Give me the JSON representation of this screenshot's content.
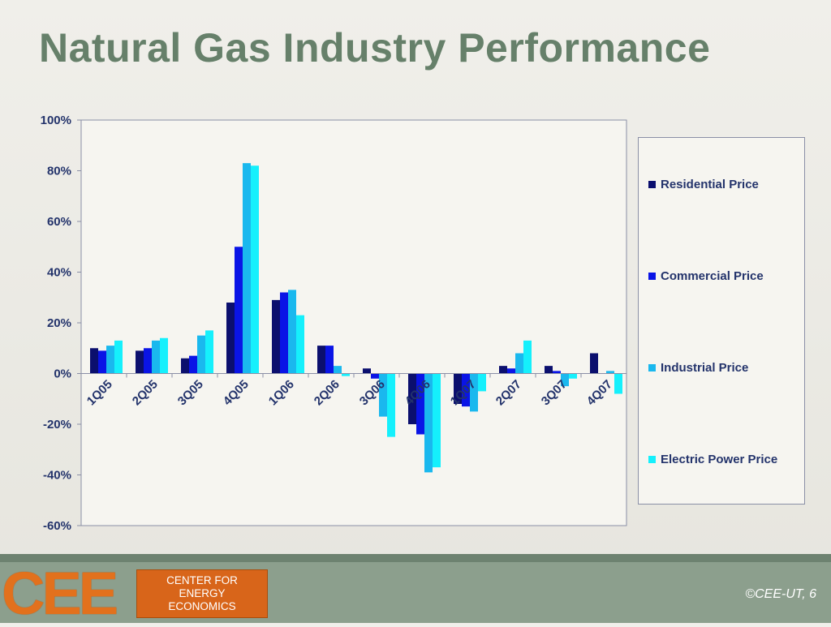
{
  "slide": {
    "title": "Natural Gas Industry Performance"
  },
  "chart_data": {
    "type": "bar",
    "categories": [
      "1Q05",
      "2Q05",
      "3Q05",
      "4Q05",
      "1Q06",
      "2Q06",
      "3Q06",
      "4Q06",
      "1Q07",
      "2Q07",
      "3Q07",
      "4Q07"
    ],
    "series": [
      {
        "name": "Residential Price",
        "color": "#0b0f6e",
        "values": [
          10,
          9,
          6,
          28,
          29,
          11,
          2,
          -20,
          -12,
          3,
          3,
          8
        ]
      },
      {
        "name": "Commercial Price",
        "color": "#0a14e6",
        "values": [
          9,
          10,
          7,
          50,
          32,
          11,
          -2,
          -24,
          -13,
          2,
          1,
          0
        ]
      },
      {
        "name": "Industrial Price",
        "color": "#1ab8ee",
        "values": [
          11,
          13,
          15,
          83,
          33,
          3,
          -17,
          -39,
          -15,
          8,
          -5,
          1
        ]
      },
      {
        "name": "Electric Power Price",
        "color": "#15f0fc",
        "values": [
          13,
          14,
          17,
          82,
          23,
          -1,
          -25,
          -37,
          -7,
          13,
          -2,
          -8
        ]
      }
    ],
    "ylim": [
      -60,
      100
    ],
    "yticks": [
      "-60%",
      "-40%",
      "-20%",
      "0%",
      "20%",
      "40%",
      "60%",
      "80%",
      "100%"
    ],
    "yunit": "%",
    "grid": false,
    "legend_position": "right"
  },
  "footer": {
    "logo_letters": "CEE",
    "logo_text": [
      "CENTER FOR",
      "ENERGY",
      "ECONOMICS"
    ],
    "copyright": "©CEE-UT, 6"
  }
}
